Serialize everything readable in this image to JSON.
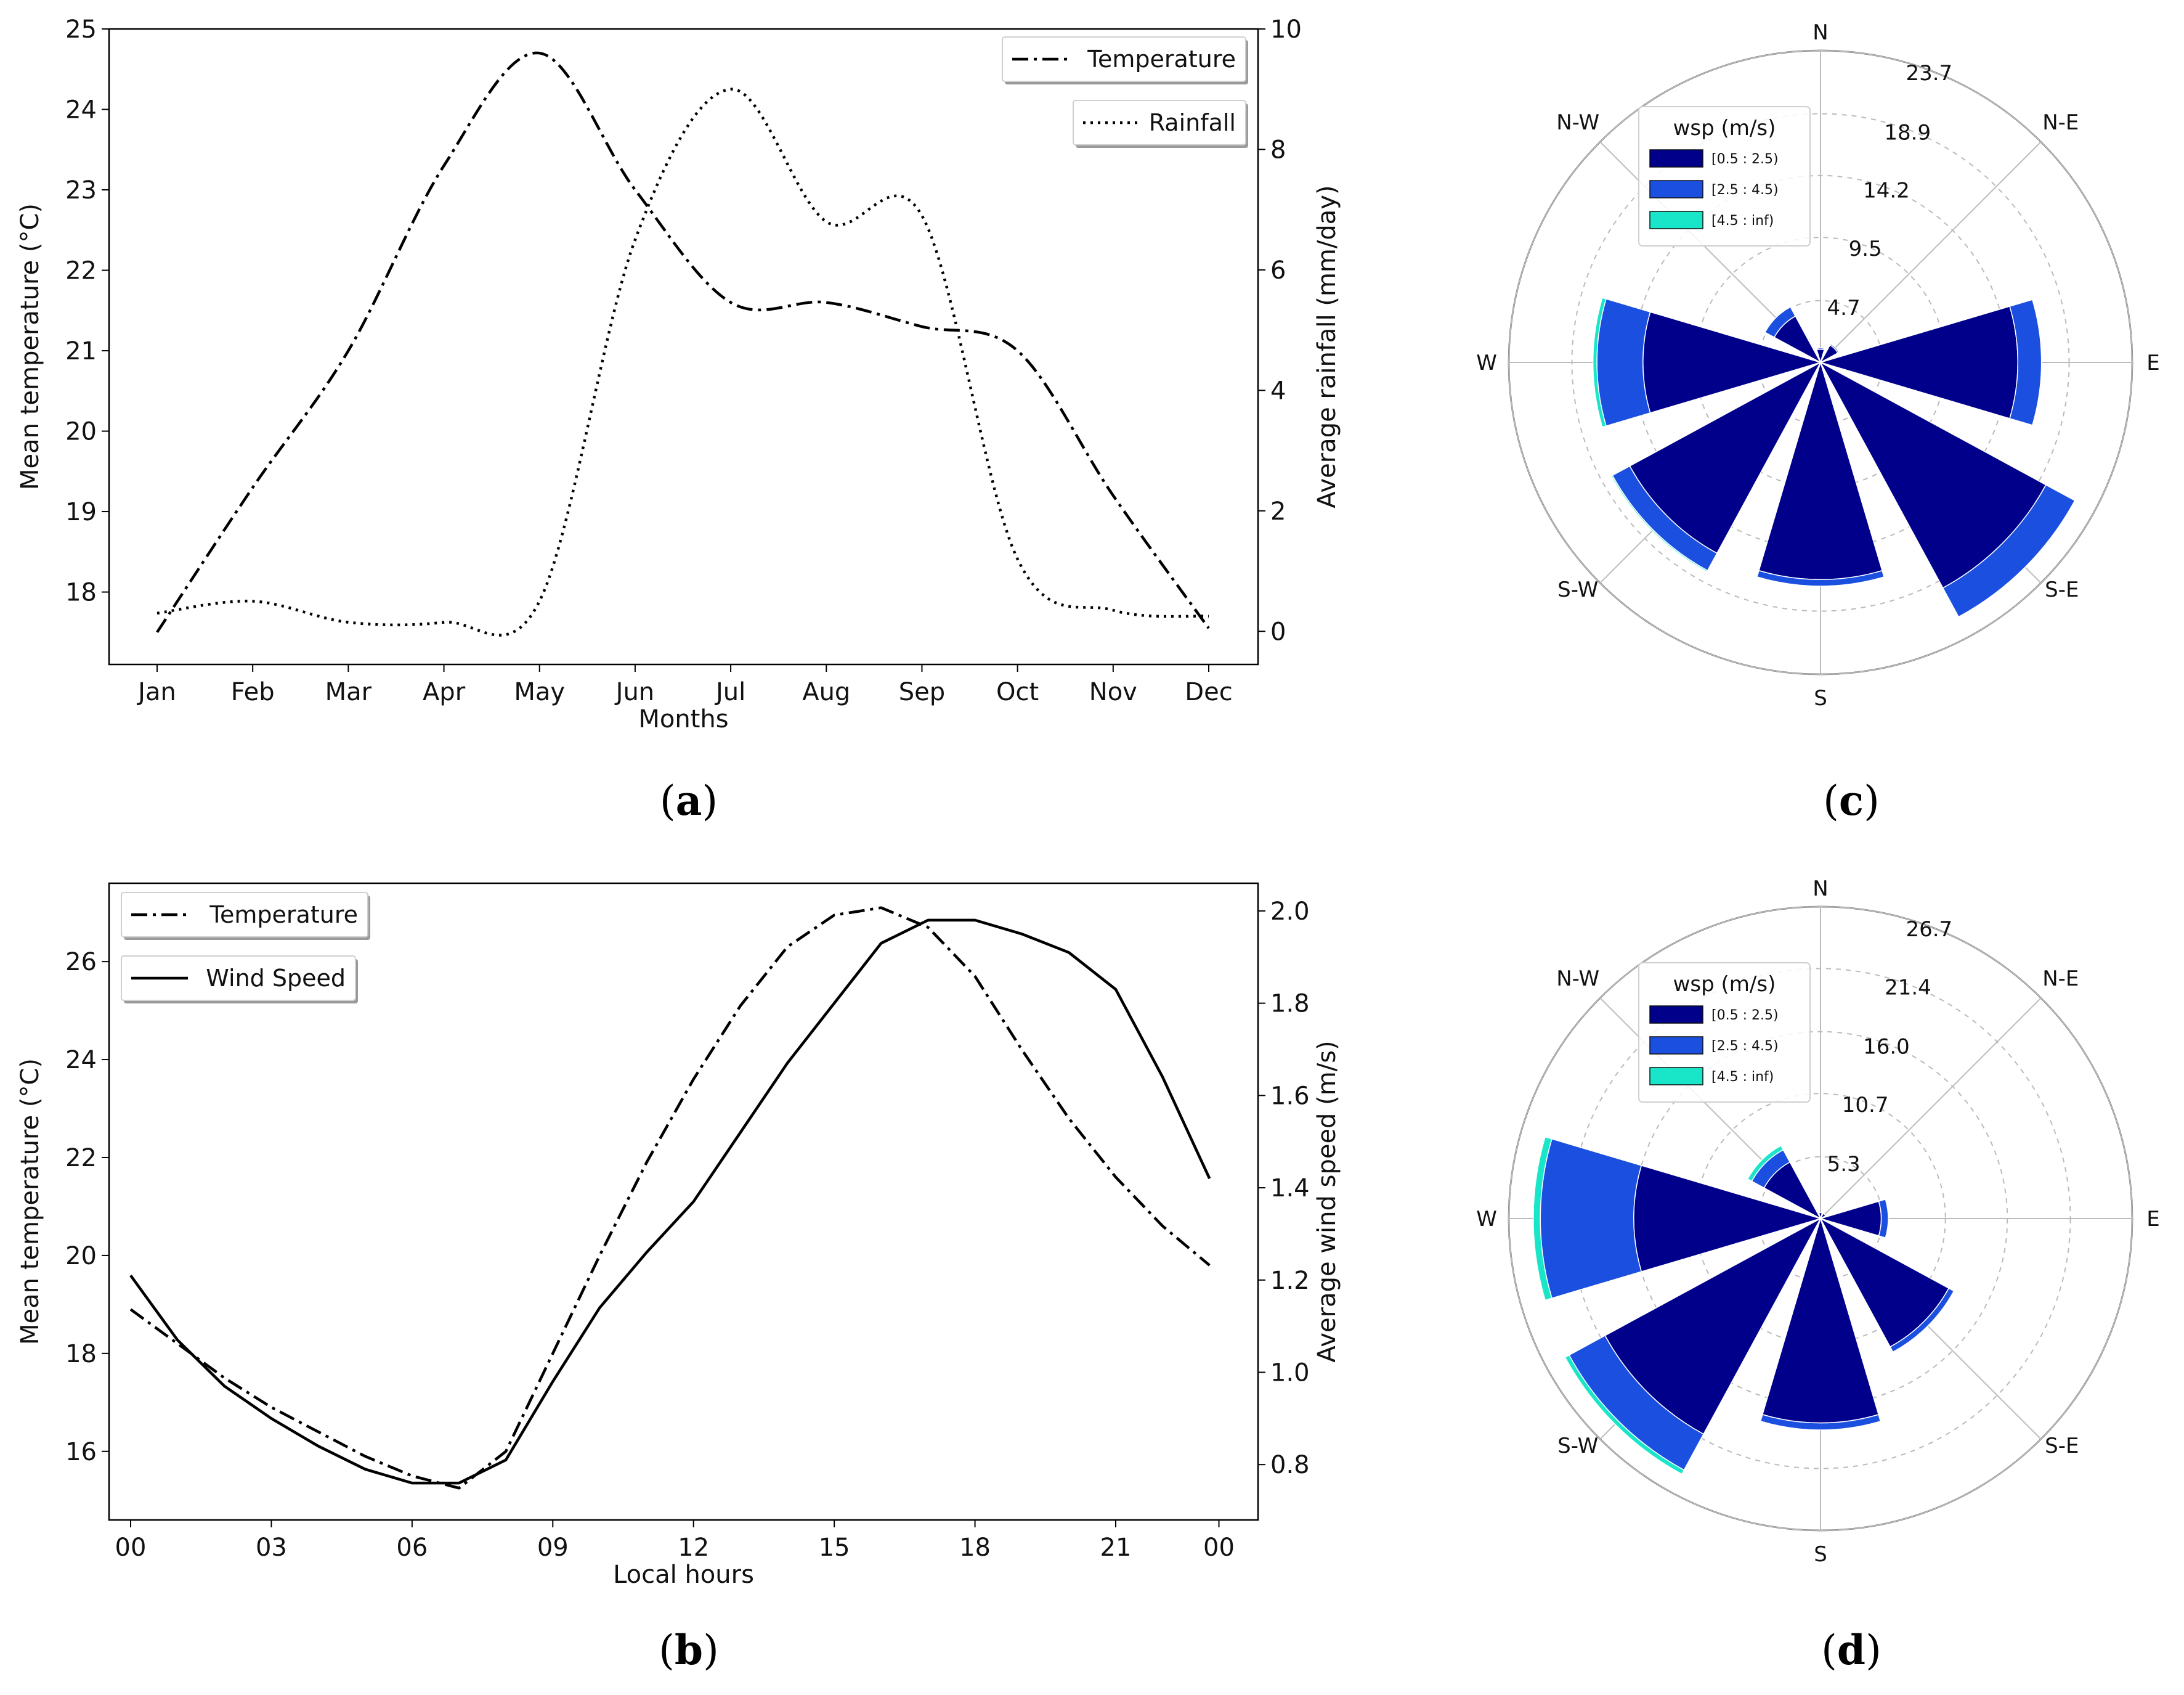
{
  "colors": {
    "axis": "#000000",
    "line": "#000000",
    "grid": "#bbbbbb",
    "rose_bin1": "#00008b",
    "rose_bin2": "#1a4fe0",
    "rose_bin3": "#19e6c8"
  },
  "panels": {
    "a": {
      "prefix": "(",
      "letter": "a",
      "suffix": ")"
    },
    "b": {
      "prefix": "(",
      "letter": "b",
      "suffix": ")"
    },
    "c": {
      "prefix": "(",
      "letter": "c",
      "suffix": ")"
    },
    "d": {
      "prefix": "(",
      "letter": "d",
      "suffix": ")"
    }
  },
  "chart_data": [
    {
      "id": "a",
      "type": "line",
      "xlabel": "Months",
      "ylabel": "Mean temperature (°C)",
      "y2label": "Average rainfall (mm/day)",
      "categories": [
        "Jan",
        "Feb",
        "Mar",
        "Apr",
        "May",
        "Jun",
        "Jul",
        "Aug",
        "Sep",
        "Oct",
        "Nov",
        "Dec"
      ],
      "ylim": [
        17.1,
        25.0
      ],
      "yticks": [
        18,
        19,
        20,
        21,
        22,
        23,
        24,
        25
      ],
      "y2lim": [
        -0.55,
        10.0
      ],
      "y2ticks": [
        0,
        2,
        4,
        6,
        8,
        10
      ],
      "series": [
        {
          "name": "Temperature",
          "axis": "left",
          "style": "dashdot",
          "values": [
            17.5,
            19.3,
            21.0,
            23.3,
            24.7,
            23.0,
            21.6,
            21.6,
            21.3,
            21.0,
            19.2,
            17.55
          ]
        },
        {
          "name": "Rainfall",
          "axis": "right",
          "style": "dotted",
          "values": [
            0.3,
            0.5,
            0.15,
            0.15,
            0.5,
            6.5,
            9.0,
            6.8,
            6.9,
            1.2,
            0.35,
            0.25
          ]
        }
      ],
      "legend": [
        {
          "label": "Temperature",
          "style": "dashdot"
        },
        {
          "label": "Rainfall",
          "style": "dotted"
        }
      ],
      "legend_placement": "top-right"
    },
    {
      "id": "b",
      "type": "line",
      "xlabel": "Local hours",
      "ylabel": "Mean temperature (°C)",
      "y2label": "Average wind speed (m/s)",
      "categories": [
        "00",
        "03",
        "06",
        "09",
        "12",
        "15",
        "18",
        "21",
        "00"
      ],
      "x": [
        0,
        1,
        2,
        3,
        4,
        5,
        6,
        7,
        8,
        9,
        10,
        11,
        12,
        13,
        14,
        15,
        16,
        17,
        18,
        19,
        20,
        21,
        22,
        23
      ],
      "xlim": [
        -0.5,
        23.2
      ],
      "xticks": [
        0,
        3,
        6,
        9,
        12,
        15,
        18,
        21,
        23.2
      ],
      "ylim": [
        14.6,
        27.6
      ],
      "yticks": [
        16,
        18,
        20,
        22,
        24,
        26
      ],
      "y2lim": [
        0.68,
        2.06
      ],
      "y2ticks": [
        0.8,
        1.0,
        1.2,
        1.4,
        1.6,
        1.8,
        2.0
      ],
      "series": [
        {
          "name": "Temperature",
          "axis": "left",
          "style": "dashdot",
          "values": [
            18.9,
            18.2,
            17.5,
            16.9,
            16.4,
            15.9,
            15.5,
            15.25,
            16.0,
            18.0,
            20.0,
            21.9,
            23.6,
            25.1,
            26.3,
            26.95,
            27.1,
            26.7,
            25.7,
            24.2,
            22.8,
            21.6,
            20.6,
            19.8
          ]
        },
        {
          "name": "Wind Speed",
          "axis": "right",
          "style": "solid",
          "values": [
            1.21,
            1.07,
            0.97,
            0.9,
            0.84,
            0.79,
            0.76,
            0.76,
            0.81,
            0.98,
            1.14,
            1.26,
            1.37,
            1.52,
            1.67,
            1.8,
            1.93,
            1.98,
            1.98,
            1.95,
            1.91,
            1.83,
            1.64,
            1.42
          ]
        }
      ],
      "legend": [
        {
          "label": "Temperature",
          "style": "dashdot"
        },
        {
          "label": "Wind Speed",
          "style": "solid"
        }
      ],
      "legend_placement": "top-left"
    },
    {
      "id": "c",
      "type": "windrose",
      "directions": [
        "N",
        "N-E",
        "E",
        "S-E",
        "S",
        "S-W",
        "W",
        "N-W"
      ],
      "ring_labels": [
        "4.7",
        "9.5",
        "14.2",
        "18.9",
        "23.7"
      ],
      "rmax": 23.7,
      "legend_title": "wsp (m/s)",
      "bins": [
        "[0.5 : 2.5)",
        "[2.5 : 4.5)",
        "[4.5 : inf)"
      ],
      "petals": [
        {
          "direction": "N",
          "values": [
            1.0,
            0.1,
            0.0
          ]
        },
        {
          "direction": "N-E",
          "values": [
            1.5,
            0.1,
            0.0
          ]
        },
        {
          "direction": "E",
          "values": [
            15.0,
            1.8,
            0.0
          ]
        },
        {
          "direction": "S-E",
          "values": [
            19.5,
            2.5,
            0.0
          ]
        },
        {
          "direction": "S",
          "values": [
            16.5,
            0.5,
            0.0
          ]
        },
        {
          "direction": "S-W",
          "values": [
            16.5,
            1.5,
            0.1
          ]
        },
        {
          "direction": "W",
          "values": [
            13.5,
            3.5,
            0.3
          ]
        },
        {
          "direction": "N-W",
          "values": [
            4.0,
            0.8,
            0.0
          ]
        }
      ]
    },
    {
      "id": "d",
      "type": "windrose",
      "directions": [
        "N",
        "N-E",
        "E",
        "S-E",
        "S",
        "S-W",
        "W",
        "N-W"
      ],
      "ring_labels": [
        "5.3",
        "10.7",
        "16.0",
        "21.4",
        "26.7"
      ],
      "rmax": 26.7,
      "legend_title": "wsp (m/s)",
      "bins": [
        "[0.5 : 2.5)",
        "[2.5 : 4.5)",
        "[4.5 : inf)"
      ],
      "petals": [
        {
          "direction": "N",
          "values": [
            0.5,
            0.0,
            0.0
          ]
        },
        {
          "direction": "N-E",
          "values": [
            0.5,
            0.0,
            0.0
          ]
        },
        {
          "direction": "E",
          "values": [
            5.2,
            0.6,
            0.0
          ]
        },
        {
          "direction": "S-E",
          "values": [
            12.5,
            0.5,
            0.0
          ]
        },
        {
          "direction": "S",
          "values": [
            17.5,
            0.6,
            0.0
          ]
        },
        {
          "direction": "S-W",
          "values": [
            21.0,
            3.5,
            0.4
          ]
        },
        {
          "direction": "W",
          "values": [
            16.0,
            8.0,
            0.6
          ]
        },
        {
          "direction": "N-W",
          "values": [
            5.5,
            1.2,
            0.4
          ]
        }
      ]
    }
  ]
}
